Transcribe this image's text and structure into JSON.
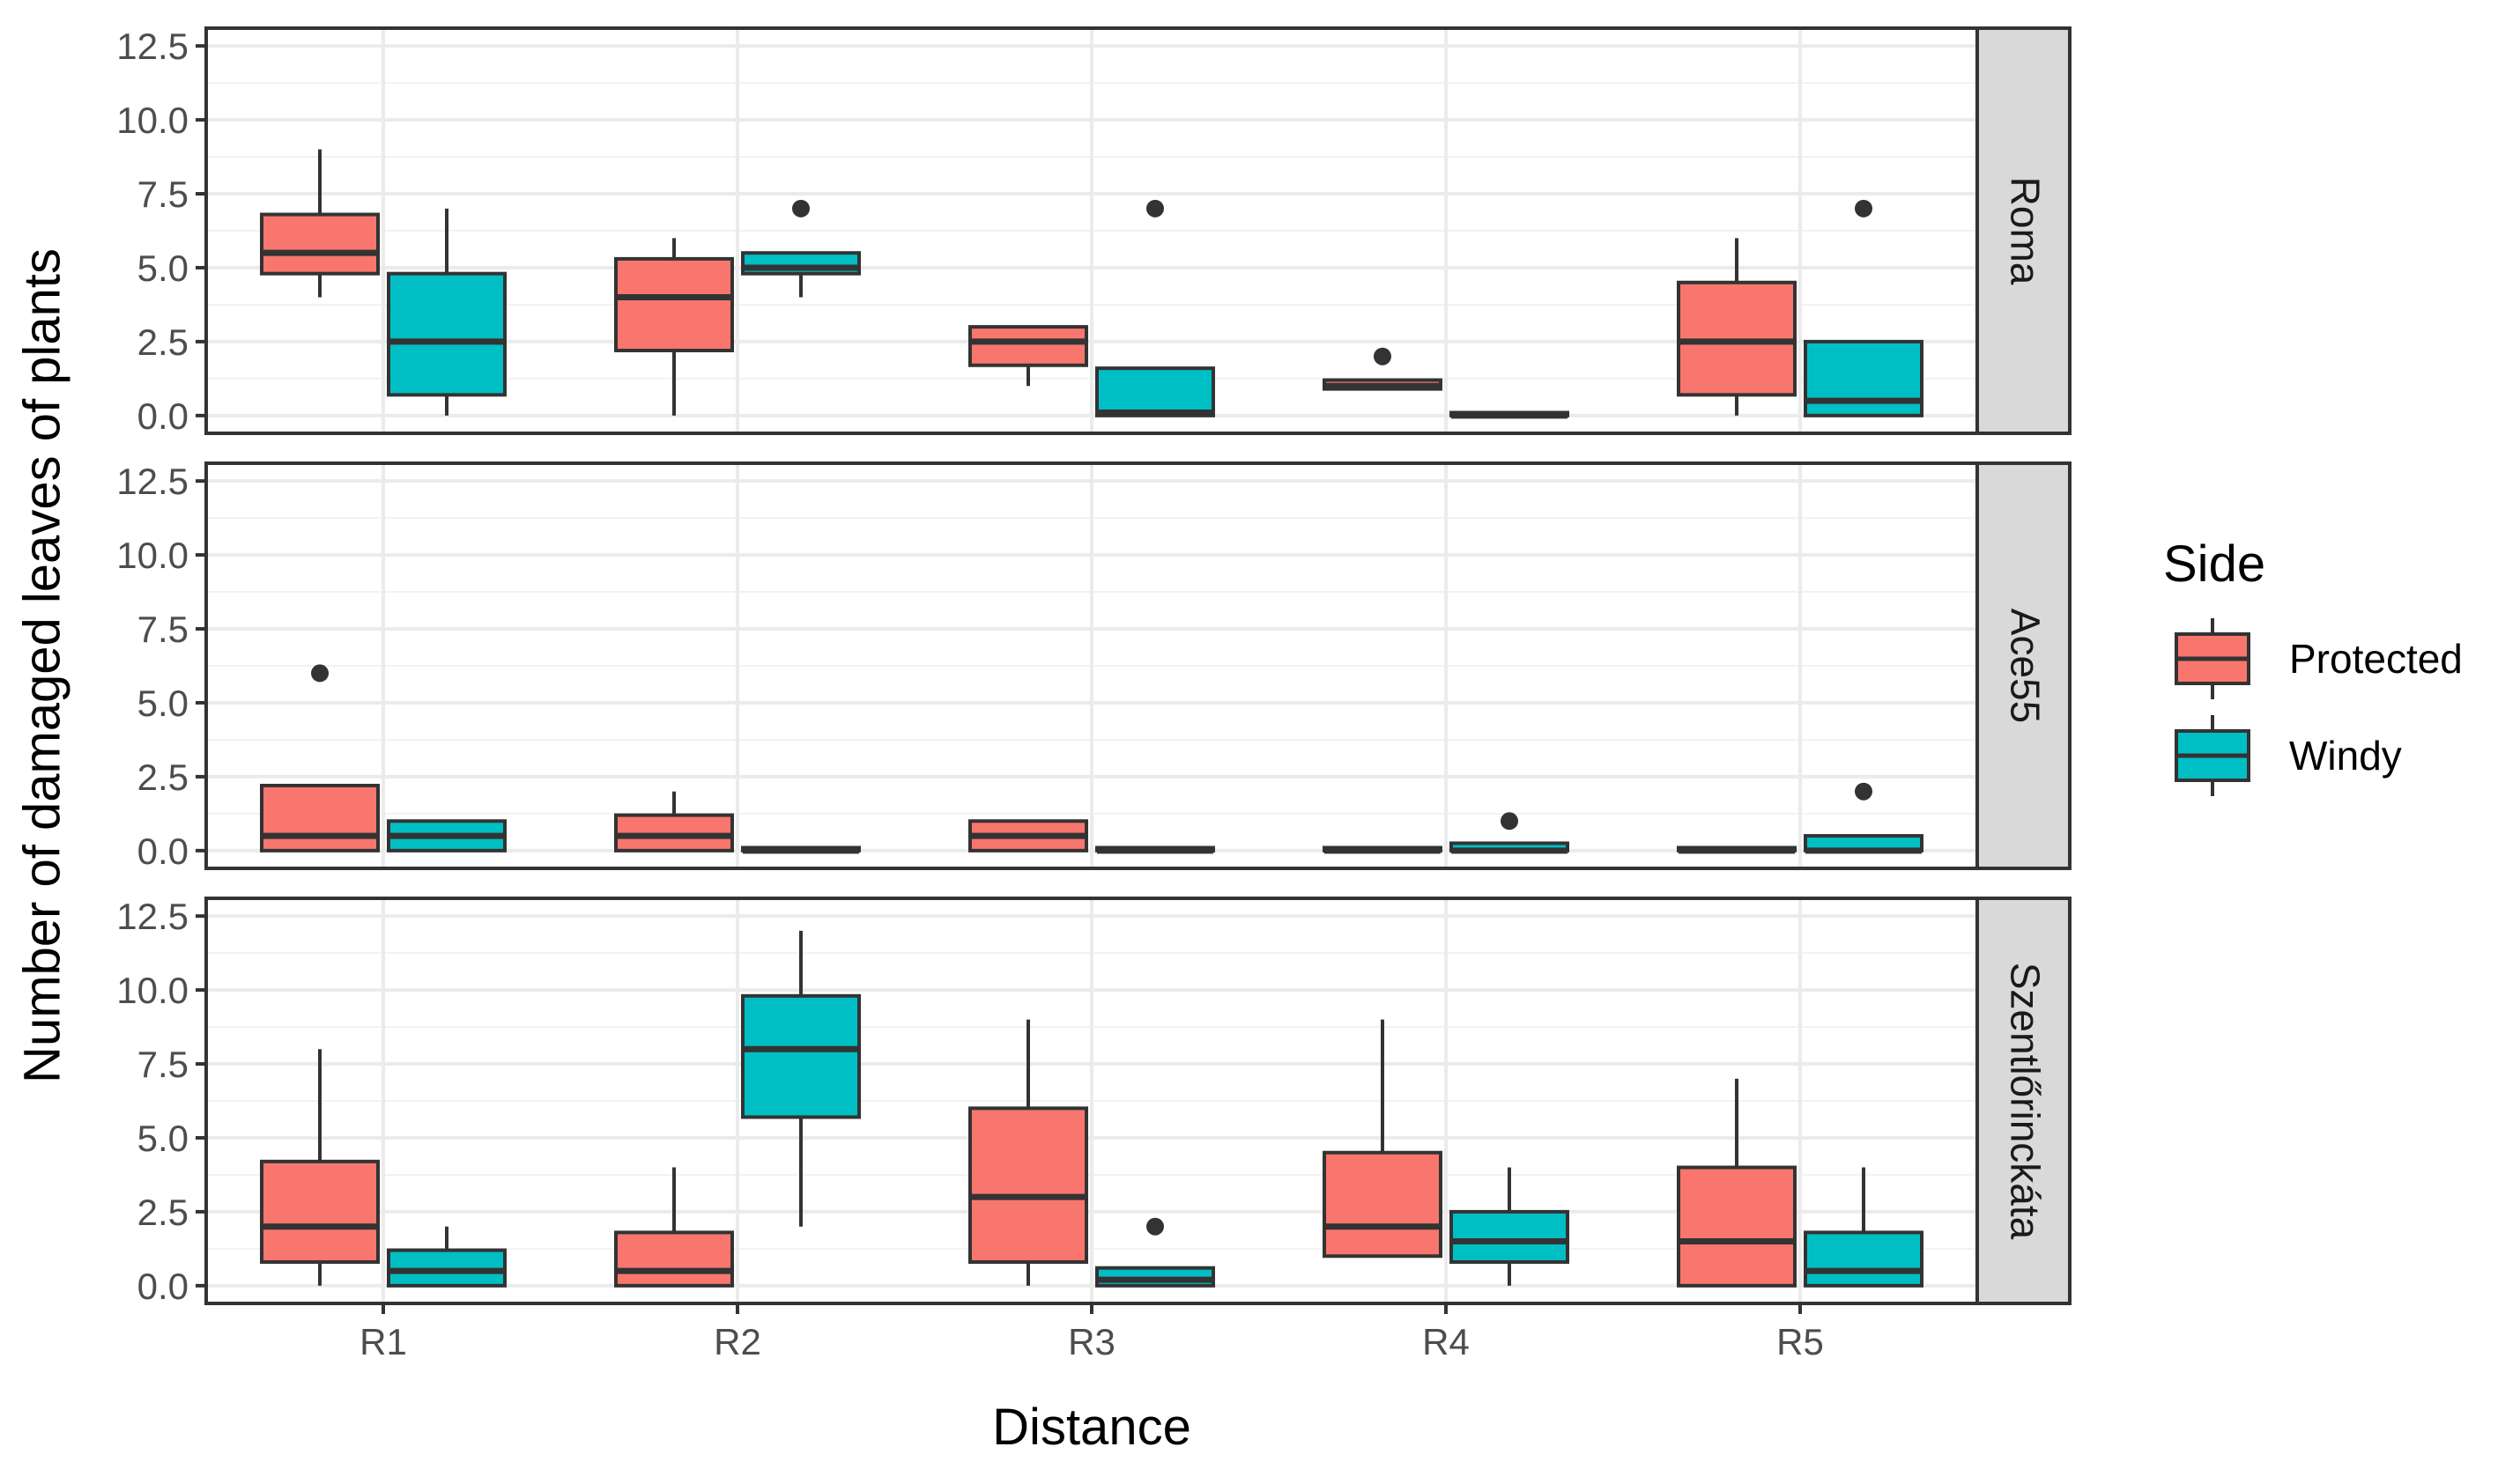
{
  "chart_data": {
    "type": "boxplot",
    "xlabel": "Distance",
    "ylabel": "Number of damaged leaves of plants",
    "categories": [
      "R1",
      "R2",
      "R3",
      "R4",
      "R5"
    ],
    "ylim": [
      -0.6,
      13.1
    ],
    "yticks": [
      0.0,
      2.5,
      5.0,
      7.5,
      10.0,
      12.5
    ],
    "ytick_labels": [
      "0.0",
      "2.5",
      "5.0",
      "7.5",
      "10.0",
      "12.5"
    ],
    "legend": {
      "title": "Side",
      "entries": [
        {
          "name": "Protected",
          "color": "#F8766D"
        },
        {
          "name": "Windy",
          "color": "#00BFC4"
        }
      ]
    },
    "colors": {
      "panel_border": "#333333",
      "grid": "#ebebeb",
      "strip_bg": "#d9d9d9",
      "box_line": "#333333",
      "outlier": "#333333"
    },
    "panels": [
      {
        "label": "Roma",
        "boxes": [
          {
            "category": "R1",
            "side": "Protected",
            "min": 4.0,
            "q1": 4.8,
            "median": 5.5,
            "q3": 6.8,
            "max": 9.0,
            "outliers": []
          },
          {
            "category": "R1",
            "side": "Windy",
            "min": 0.0,
            "q1": 0.7,
            "median": 2.5,
            "q3": 4.8,
            "max": 7.0,
            "outliers": []
          },
          {
            "category": "R2",
            "side": "Protected",
            "min": 0.0,
            "q1": 2.2,
            "median": 4.0,
            "q3": 5.3,
            "max": 6.0,
            "outliers": []
          },
          {
            "category": "R2",
            "side": "Windy",
            "min": 4.0,
            "q1": 4.8,
            "median": 5.0,
            "q3": 5.5,
            "max": 5.5,
            "outliers": [
              7.0
            ]
          },
          {
            "category": "R3",
            "side": "Protected",
            "min": 1.0,
            "q1": 1.7,
            "median": 2.5,
            "q3": 3.0,
            "max": 3.0,
            "outliers": []
          },
          {
            "category": "R3",
            "side": "Windy",
            "min": 0.0,
            "q1": 0.0,
            "median": 0.1,
            "q3": 1.6,
            "max": 1.6,
            "outliers": [
              7.0
            ]
          },
          {
            "category": "R4",
            "side": "Protected",
            "min": 0.9,
            "q1": 0.9,
            "median": 1.0,
            "q3": 1.2,
            "max": 1.2,
            "outliers": [
              2.0
            ]
          },
          {
            "category": "R4",
            "side": "Windy",
            "min": 0.0,
            "q1": 0.0,
            "median": 0.0,
            "q3": 0.1,
            "max": 0.1,
            "outliers": []
          },
          {
            "category": "R5",
            "side": "Protected",
            "min": 0.0,
            "q1": 0.7,
            "median": 2.5,
            "q3": 4.5,
            "max": 6.0,
            "outliers": []
          },
          {
            "category": "R5",
            "side": "Windy",
            "min": 0.0,
            "q1": 0.0,
            "median": 0.5,
            "q3": 2.5,
            "max": 2.5,
            "outliers": [
              7.0
            ]
          }
        ]
      },
      {
        "label": "Ace55",
        "boxes": [
          {
            "category": "R1",
            "side": "Protected",
            "min": 0.0,
            "q1": 0.0,
            "median": 0.5,
            "q3": 2.2,
            "max": 2.2,
            "outliers": [
              6.0
            ]
          },
          {
            "category": "R1",
            "side": "Windy",
            "min": 0.0,
            "q1": 0.0,
            "median": 0.5,
            "q3": 1.0,
            "max": 1.0,
            "outliers": []
          },
          {
            "category": "R2",
            "side": "Protected",
            "min": 0.0,
            "q1": 0.0,
            "median": 0.5,
            "q3": 1.2,
            "max": 2.0,
            "outliers": []
          },
          {
            "category": "R2",
            "side": "Windy",
            "min": 0.0,
            "q1": 0.0,
            "median": 0.0,
            "q3": 0.1,
            "max": 0.1,
            "outliers": []
          },
          {
            "category": "R3",
            "side": "Protected",
            "min": 0.0,
            "q1": 0.0,
            "median": 0.5,
            "q3": 1.0,
            "max": 1.0,
            "outliers": []
          },
          {
            "category": "R3",
            "side": "Windy",
            "min": 0.0,
            "q1": 0.0,
            "median": 0.0,
            "q3": 0.1,
            "max": 0.1,
            "outliers": []
          },
          {
            "category": "R4",
            "side": "Protected",
            "min": 0.0,
            "q1": 0.0,
            "median": 0.0,
            "q3": 0.1,
            "max": 0.1,
            "outliers": []
          },
          {
            "category": "R4",
            "side": "Windy",
            "min": 0.0,
            "q1": 0.0,
            "median": 0.0,
            "q3": 0.25,
            "max": 0.25,
            "outliers": [
              1.0
            ]
          },
          {
            "category": "R5",
            "side": "Protected",
            "min": 0.0,
            "q1": 0.0,
            "median": 0.0,
            "q3": 0.1,
            "max": 0.1,
            "outliers": []
          },
          {
            "category": "R5",
            "side": "Windy",
            "min": 0.0,
            "q1": 0.0,
            "median": 0.0,
            "q3": 0.5,
            "max": 0.5,
            "outliers": [
              2.0
            ]
          }
        ]
      },
      {
        "label": "Szentlőrinckáta",
        "boxes": [
          {
            "category": "R1",
            "side": "Protected",
            "min": 0.0,
            "q1": 0.8,
            "median": 2.0,
            "q3": 4.2,
            "max": 8.0,
            "outliers": []
          },
          {
            "category": "R1",
            "side": "Windy",
            "min": 0.0,
            "q1": 0.0,
            "median": 0.5,
            "q3": 1.2,
            "max": 2.0,
            "outliers": []
          },
          {
            "category": "R2",
            "side": "Protected",
            "min": 0.0,
            "q1": 0.0,
            "median": 0.5,
            "q3": 1.8,
            "max": 4.0,
            "outliers": []
          },
          {
            "category": "R2",
            "side": "Windy",
            "min": 2.0,
            "q1": 5.7,
            "median": 8.0,
            "q3": 9.8,
            "max": 12.0,
            "outliers": []
          },
          {
            "category": "R3",
            "side": "Protected",
            "min": 0.0,
            "q1": 0.8,
            "median": 3.0,
            "q3": 6.0,
            "max": 9.0,
            "outliers": []
          },
          {
            "category": "R3",
            "side": "Windy",
            "min": 0.0,
            "q1": 0.0,
            "median": 0.2,
            "q3": 0.6,
            "max": 0.6,
            "outliers": [
              2.0
            ]
          },
          {
            "category": "R4",
            "side": "Protected",
            "min": 1.0,
            "q1": 1.0,
            "median": 2.0,
            "q3": 4.5,
            "max": 9.0,
            "outliers": []
          },
          {
            "category": "R4",
            "side": "Windy",
            "min": 0.0,
            "q1": 0.8,
            "median": 1.5,
            "q3": 2.5,
            "max": 4.0,
            "outliers": []
          },
          {
            "category": "R5",
            "side": "Protected",
            "min": 0.0,
            "q1": 0.0,
            "median": 1.5,
            "q3": 4.0,
            "max": 7.0,
            "outliers": []
          },
          {
            "category": "R5",
            "side": "Windy",
            "min": 0.0,
            "q1": 0.0,
            "median": 0.5,
            "q3": 1.8,
            "max": 4.0,
            "outliers": []
          }
        ]
      }
    ]
  }
}
